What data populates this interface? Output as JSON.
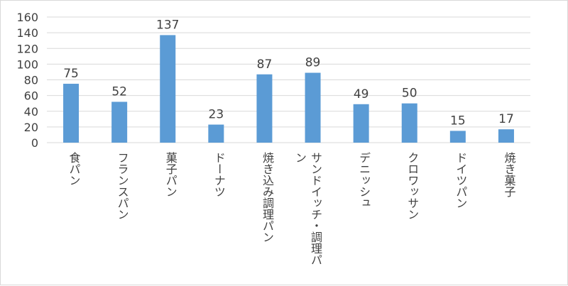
{
  "chart_data": {
    "type": "bar",
    "categories": [
      "食パン",
      "フランスパン",
      "菓子パン",
      "ドーナツ",
      "焼き込み調理パン",
      "サンドイッチ・調理パン",
      "デニッシュ",
      "クロワッサン",
      "ドイツパン",
      "焼き菓子"
    ],
    "category_label_lines": [
      [
        "食パン"
      ],
      [
        "フランスパン"
      ],
      [
        "菓子パン"
      ],
      [
        "ドーナツ"
      ],
      [
        "焼き込み調理パン"
      ],
      [
        "サンドイッチ・調理パ",
        "ン"
      ],
      [
        "デニッシュ"
      ],
      [
        "クロワッサン"
      ],
      [
        "ドイツパン"
      ],
      [
        "焼き菓子"
      ]
    ],
    "values": [
      75,
      52,
      137,
      23,
      87,
      89,
      49,
      50,
      15,
      17
    ],
    "ylim": [
      0,
      160
    ],
    "yticks": [
      0,
      20,
      40,
      60,
      80,
      100,
      120,
      140,
      160
    ],
    "grid": true,
    "legend": "none",
    "bar_color": "#5b9bd5",
    "grid_color": "#d9d9d9"
  }
}
